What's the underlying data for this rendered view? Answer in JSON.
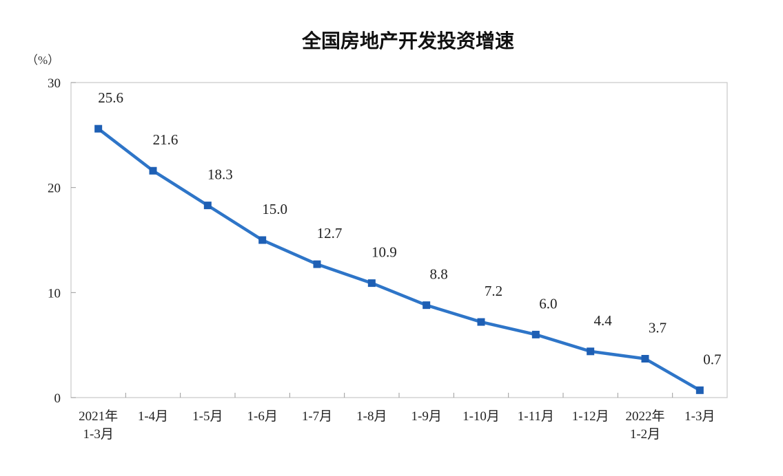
{
  "chart_data": {
    "type": "line",
    "title": "全国房地产开发投资增速",
    "ylabel": "（%）",
    "xlabel": "",
    "ylim": [
      0,
      30
    ],
    "yticks": [
      "0",
      "10",
      "20",
      "30"
    ],
    "categories": [
      [
        "2021年",
        "1-3月"
      ],
      [
        "1-4月"
      ],
      [
        "1-5月"
      ],
      [
        "1-6月"
      ],
      [
        "1-7月"
      ],
      [
        "1-8月"
      ],
      [
        "1-9月"
      ],
      [
        "1-10月"
      ],
      [
        "1-11月"
      ],
      [
        "1-12月"
      ],
      [
        "2022年",
        "1-2月"
      ],
      [
        "1-3月"
      ]
    ],
    "values": [
      25.6,
      21.6,
      18.3,
      15.0,
      12.7,
      10.9,
      8.8,
      7.2,
      6.0,
      4.4,
      3.7,
      0.7
    ],
    "labels": [
      "25.6",
      "21.6",
      "18.3",
      "15.0",
      "12.7",
      "10.9",
      "8.8",
      "7.2",
      "6.0",
      "4.4",
      "3.7",
      "0.7"
    ],
    "grid": false,
    "line_color": "#2E75C8"
  }
}
